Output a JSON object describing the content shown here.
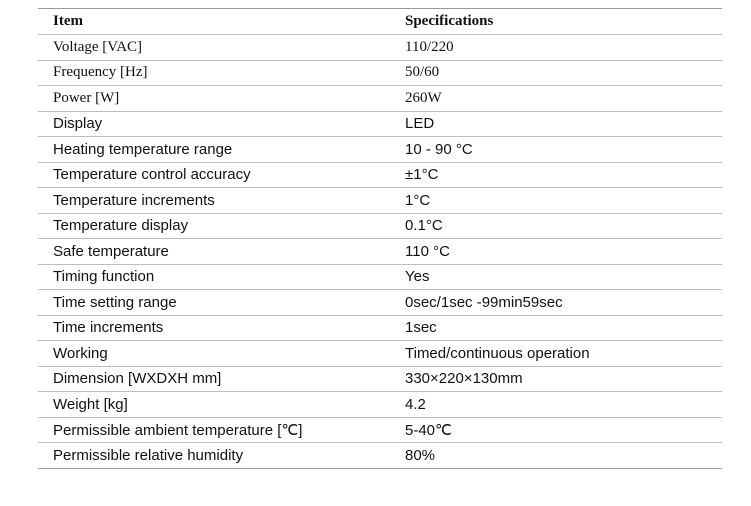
{
  "table": {
    "header": [
      "Item",
      "Specifications"
    ],
    "rows": [
      [
        "Voltage [VAC]",
        "110/220"
      ],
      [
        "Frequency [Hz]",
        "50/60"
      ],
      [
        "Power [W]",
        "260W"
      ],
      [
        "Display",
        "LED"
      ],
      [
        "Heating temperature range",
        "10 - 90 °C"
      ],
      [
        "Temperature control accuracy",
        "±1°C"
      ],
      [
        "Temperature increments",
        "1°C"
      ],
      [
        "Temperature display",
        "0.1°C"
      ],
      [
        "Safe temperature",
        "110 °C"
      ],
      [
        "Timing function",
        "Yes"
      ],
      [
        "Time setting range",
        "0sec/1sec -99min59sec"
      ],
      [
        "Time increments",
        "1sec"
      ],
      [
        "Working",
        "Timed/continuous operation"
      ],
      [
        "Dimension [WXDXH mm]",
        "330×220×130mm"
      ],
      [
        "Weight [kg]",
        "4.2"
      ],
      [
        "Permissible ambient temperature [℃]",
        "5-40℃"
      ],
      [
        "Permissible relative humidity",
        "80%"
      ]
    ]
  }
}
